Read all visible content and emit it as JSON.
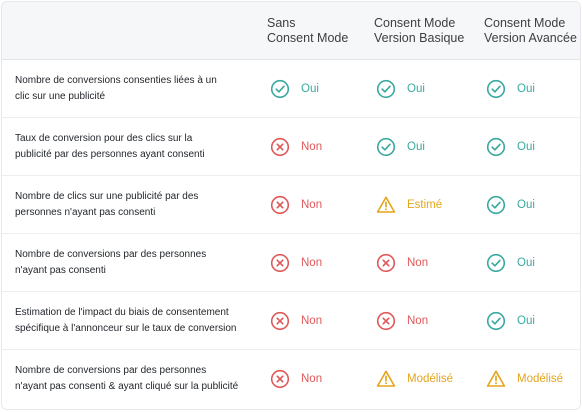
{
  "columns": [
    [
      "Sans",
      "Consent Mode"
    ],
    [
      "Consent Mode",
      "Version Basique"
    ],
    [
      "Consent Mode",
      "Version Avancée"
    ]
  ],
  "statuses": {
    "ok": {
      "label": "Oui",
      "color": "#3aa9a0",
      "icon": "check-circle-icon"
    },
    "no": {
      "label": "Non",
      "color": "#e0595a",
      "icon": "x-circle-icon"
    },
    "est": {
      "label": "Estimé",
      "color": "#e3a51d",
      "icon": "warning-triangle-icon"
    },
    "mod": {
      "label": "Modélisé",
      "color": "#e3a51d",
      "icon": "warning-triangle-icon"
    }
  },
  "rows": [
    {
      "label": [
        "Nombre de conversions consenties liées à un",
        "clic sur une publicité"
      ],
      "values": [
        "ok",
        "ok",
        "ok"
      ]
    },
    {
      "label": [
        "Taux de conversion pour des clics sur la",
        "publicité par des personnes ayant consenti"
      ],
      "values": [
        "no",
        "ok",
        "ok"
      ]
    },
    {
      "label": [
        "Nombre de clics sur une publicité par des",
        "personnes n'ayant pas consenti"
      ],
      "values": [
        "no",
        "est",
        "ok"
      ]
    },
    {
      "label": [
        "Nombre de conversions par des personnes",
        "n'ayant pas consenti"
      ],
      "values": [
        "no",
        "no",
        "ok"
      ]
    },
    {
      "label": [
        "Estimation de l'impact du biais de consentement",
        "spécifique à l'annonceur sur le taux de conversion"
      ],
      "values": [
        "no",
        "no",
        "ok"
      ]
    },
    {
      "label": [
        "Nombre de conversions par des personnes",
        "n'ayant pas consenti & ayant cliqué sur la publicité"
      ],
      "values": [
        "no",
        "mod",
        "mod"
      ]
    }
  ]
}
